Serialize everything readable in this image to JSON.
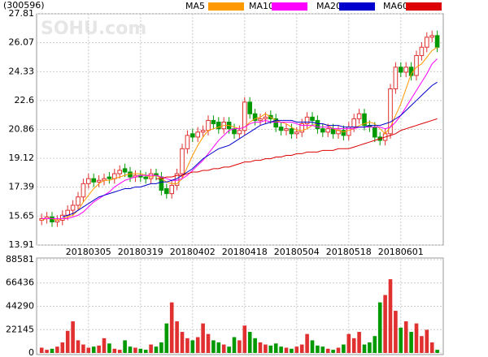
{
  "chart_data": [
    {
      "type": "candlestick",
      "title": "(300596)",
      "watermark": "SOHU.com",
      "categories": [
        null,
        null,
        null,
        null,
        null,
        null,
        null,
        null,
        null,
        "20180305",
        null,
        null,
        null,
        null,
        null,
        null,
        null,
        null,
        null,
        "20180319",
        null,
        null,
        null,
        null,
        null,
        null,
        null,
        null,
        null,
        "20180402",
        null,
        null,
        null,
        null,
        null,
        null,
        null,
        null,
        null,
        "20180418",
        null,
        null,
        null,
        null,
        null,
        null,
        null,
        null,
        null,
        "20180504",
        null,
        null,
        null,
        null,
        null,
        null,
        null,
        null,
        null,
        "20180518",
        null,
        null,
        null,
        null,
        null,
        null,
        null,
        null,
        null,
        "20180601",
        null,
        null,
        null,
        null,
        null,
        null,
        null
      ],
      "open": [
        15.4,
        15.5,
        15.6,
        15.3,
        15.4,
        15.7,
        16.0,
        16.3,
        16.8,
        17.6,
        17.9,
        17.7,
        17.8,
        18.0,
        17.9,
        18.2,
        18.5,
        18.3,
        18.0,
        18.1,
        18.0,
        17.9,
        18.2,
        18.0,
        17.3,
        17.0,
        17.5,
        18.2,
        19.7,
        20.6,
        20.4,
        20.7,
        20.8,
        21.4,
        21.3,
        20.9,
        21.3,
        20.9,
        20.6,
        20.8,
        22.5,
        21.8,
        21.4,
        21.5,
        21.7,
        21.5,
        21.0,
        20.8,
        20.9,
        20.6,
        20.7,
        21.2,
        21.6,
        21.4,
        20.9,
        20.7,
        20.9,
        20.6,
        20.8,
        20.5,
        21.0,
        21.5,
        21.8,
        21.1,
        21.0,
        20.4,
        20.2,
        20.6,
        23.3,
        24.6,
        24.3,
        24.6,
        24.1,
        25.3,
        25.8,
        26.4,
        26.5
      ],
      "high": [
        15.8,
        15.9,
        15.9,
        15.7,
        16.0,
        16.3,
        16.6,
        17.1,
        17.9,
        18.2,
        18.2,
        18.1,
        18.2,
        18.3,
        18.5,
        18.7,
        18.8,
        18.6,
        18.4,
        18.4,
        18.3,
        18.5,
        18.5,
        18.3,
        17.6,
        17.8,
        18.5,
        20.0,
        20.8,
        20.9,
        21.0,
        21.1,
        21.7,
        21.7,
        21.6,
        21.6,
        21.6,
        21.2,
        21.1,
        22.8,
        22.8,
        22.1,
        21.8,
        21.9,
        22.0,
        21.8,
        21.3,
        21.2,
        21.2,
        21.0,
        21.5,
        21.9,
        21.9,
        21.7,
        21.2,
        21.2,
        21.2,
        21.1,
        21.1,
        21.3,
        21.8,
        22.1,
        22.1,
        21.4,
        21.3,
        20.7,
        20.9,
        23.6,
        24.9,
        24.9,
        24.9,
        24.9,
        25.6,
        26.1,
        26.7,
        26.8,
        26.8
      ],
      "low": [
        15.1,
        15.2,
        15.0,
        15.0,
        15.1,
        15.4,
        15.7,
        16.0,
        16.5,
        17.3,
        17.4,
        17.4,
        17.5,
        17.6,
        17.6,
        17.9,
        18.0,
        17.7,
        17.7,
        17.7,
        17.6,
        17.6,
        17.8,
        16.9,
        16.7,
        16.7,
        17.2,
        17.9,
        19.4,
        20.1,
        20.1,
        20.4,
        20.5,
        20.9,
        20.6,
        20.6,
        20.6,
        20.3,
        20.3,
        20.5,
        21.5,
        21.1,
        21.1,
        21.2,
        21.2,
        20.7,
        20.5,
        20.5,
        20.3,
        20.3,
        20.4,
        20.9,
        21.1,
        20.6,
        20.4,
        20.4,
        20.3,
        20.3,
        20.2,
        20.2,
        20.7,
        21.2,
        20.8,
        20.7,
        20.1,
        19.9,
        19.9,
        20.3,
        23.0,
        24.0,
        24.0,
        23.8,
        23.8,
        25.0,
        25.5,
        26.1,
        25.5
      ],
      "close": [
        15.5,
        15.6,
        15.3,
        15.4,
        15.7,
        16.0,
        16.3,
        16.8,
        17.6,
        17.9,
        17.7,
        17.8,
        17.9,
        17.9,
        18.2,
        18.4,
        18.3,
        18.0,
        18.1,
        18.0,
        17.9,
        18.2,
        18.1,
        17.2,
        17.0,
        17.5,
        18.2,
        19.7,
        20.5,
        20.4,
        20.7,
        20.8,
        21.4,
        21.2,
        20.9,
        21.3,
        20.9,
        20.6,
        20.8,
        22.5,
        21.8,
        21.4,
        21.5,
        21.6,
        21.5,
        21.0,
        20.8,
        20.9,
        20.6,
        20.7,
        21.2,
        21.6,
        21.4,
        20.9,
        20.7,
        20.9,
        20.6,
        20.8,
        20.5,
        21.0,
        21.5,
        21.8,
        21.1,
        21.0,
        20.4,
        20.2,
        20.6,
        23.3,
        24.6,
        24.3,
        24.6,
        24.1,
        25.3,
        25.8,
        26.4,
        26.5,
        25.8
      ],
      "up_color": "#e03030",
      "down_color": "#009900",
      "series": [
        {
          "name": "MA5",
          "color": "#ff9900",
          "values": [
            15.4,
            15.5,
            15.5,
            15.4,
            15.5,
            15.6,
            15.7,
            16.0,
            16.5,
            16.9,
            17.3,
            17.6,
            17.8,
            17.8,
            17.9,
            18.0,
            18.1,
            18.2,
            18.2,
            18.2,
            18.1,
            18.0,
            18.1,
            17.9,
            17.7,
            17.6,
            17.6,
            17.9,
            18.6,
            19.3,
            19.9,
            20.4,
            20.8,
            20.9,
            21.0,
            21.1,
            21.1,
            21.0,
            20.9,
            21.0,
            21.3,
            21.5,
            21.6,
            21.8,
            21.6,
            21.4,
            21.3,
            21.2,
            21.0,
            20.8,
            20.8,
            20.9,
            21.1,
            21.2,
            21.2,
            21.1,
            20.9,
            20.8,
            20.7,
            20.8,
            20.9,
            21.1,
            21.2,
            21.3,
            21.2,
            20.9,
            20.6,
            21.0,
            21.7,
            22.4,
            23.3,
            24.2,
            24.6,
            24.8,
            25.2,
            25.6,
            25.8
          ]
        },
        {
          "name": "MA10",
          "color": "#ff00ff",
          "values": [
            15.5,
            15.5,
            15.5,
            15.5,
            15.5,
            15.5,
            15.6,
            15.7,
            15.9,
            16.2,
            16.5,
            16.7,
            16.9,
            17.1,
            17.4,
            17.6,
            17.8,
            17.9,
            18.0,
            18.1,
            18.1,
            18.1,
            18.1,
            18.0,
            17.9,
            17.8,
            17.8,
            17.9,
            18.1,
            18.4,
            18.7,
            19.0,
            19.4,
            19.8,
            20.2,
            20.5,
            20.8,
            20.9,
            20.9,
            21.0,
            21.2,
            21.3,
            21.3,
            21.4,
            21.3,
            21.3,
            21.3,
            21.3,
            21.3,
            21.2,
            21.1,
            21.1,
            21.1,
            21.0,
            21.0,
            21.0,
            20.9,
            20.9,
            20.9,
            20.9,
            20.9,
            21.0,
            21.0,
            21.0,
            21.0,
            21.0,
            20.9,
            21.0,
            21.3,
            21.7,
            22.2,
            22.7,
            23.2,
            23.7,
            24.2,
            24.8,
            25.1
          ]
        },
        {
          "name": "MA20",
          "color": "#0000cc",
          "values": [
            null,
            null,
            null,
            null,
            15.6,
            15.7,
            15.8,
            16.0,
            16.2,
            16.4,
            16.6,
            16.8,
            16.9,
            17.0,
            17.1,
            17.2,
            17.3,
            17.3,
            17.4,
            17.4,
            17.5,
            17.6,
            17.6,
            17.7,
            17.7,
            17.8,
            17.9,
            18.1,
            18.3,
            18.5,
            18.8,
            19.1,
            19.3,
            19.5,
            19.7,
            19.8,
            19.9,
            20.1,
            20.3,
            20.5,
            20.7,
            20.9,
            21.1,
            21.2,
            21.3,
            21.4,
            21.4,
            21.4,
            21.4,
            21.3,
            21.3,
            21.3,
            21.3,
            21.2,
            21.2,
            21.1,
            21.1,
            21.1,
            21.0,
            21.0,
            21.0,
            21.0,
            21.0,
            21.1,
            21.1,
            21.1,
            21.2,
            21.3,
            21.5,
            21.7,
            22.0,
            22.3,
            22.6,
            22.9,
            23.2,
            23.5,
            23.7
          ]
        },
        {
          "name": "MA60",
          "color": "#dd0000",
          "values": [
            null,
            null,
            null,
            null,
            null,
            null,
            null,
            null,
            null,
            null,
            null,
            null,
            null,
            null,
            null,
            null,
            null,
            null,
            null,
            null,
            null,
            null,
            17.9,
            17.9,
            18.0,
            18.0,
            18.1,
            18.1,
            18.2,
            18.3,
            18.3,
            18.4,
            18.4,
            18.5,
            18.5,
            18.6,
            18.6,
            18.7,
            18.8,
            18.9,
            18.9,
            19.0,
            19.0,
            19.1,
            19.1,
            19.2,
            19.2,
            19.3,
            19.3,
            19.4,
            19.4,
            19.5,
            19.5,
            19.5,
            19.6,
            19.6,
            19.6,
            19.7,
            19.7,
            19.7,
            19.8,
            19.9,
            20.0,
            20.1,
            20.2,
            20.3,
            20.4,
            20.5,
            20.6,
            20.8,
            20.9,
            21.0,
            21.1,
            21.2,
            21.3,
            21.4,
            21.5
          ]
        }
      ],
      "ylim": [
        13.91,
        27.81
      ],
      "yticks": [
        13.91,
        15.65,
        17.39,
        19.12,
        20.86,
        22.6,
        24.33,
        26.07,
        27.81
      ],
      "grid": true
    },
    {
      "type": "bar",
      "values": [
        5000,
        3000,
        4000,
        6000,
        10000,
        21000,
        30000,
        12000,
        8000,
        5000,
        6000,
        7000,
        14000,
        9000,
        4000,
        3000,
        12000,
        6000,
        5000,
        4000,
        3000,
        8000,
        6000,
        10000,
        28000,
        48000,
        30000,
        20000,
        14000,
        12000,
        15000,
        28000,
        18000,
        12000,
        10000,
        8000,
        6000,
        15000,
        12000,
        26000,
        20000,
        14000,
        10000,
        8000,
        7000,
        9000,
        6000,
        5000,
        4000,
        6000,
        8000,
        18000,
        12000,
        7000,
        6000,
        4000,
        3000,
        5000,
        8000,
        18000,
        14000,
        20000,
        8000,
        10000,
        16000,
        48000,
        55000,
        70000,
        40000,
        24000,
        30000,
        20000,
        28000,
        16000,
        22000,
        10000,
        3000
      ],
      "ylim": [
        0,
        88581
      ],
      "yticks": [
        0,
        22145,
        44290,
        66436,
        88581
      ],
      "grid": true
    }
  ]
}
